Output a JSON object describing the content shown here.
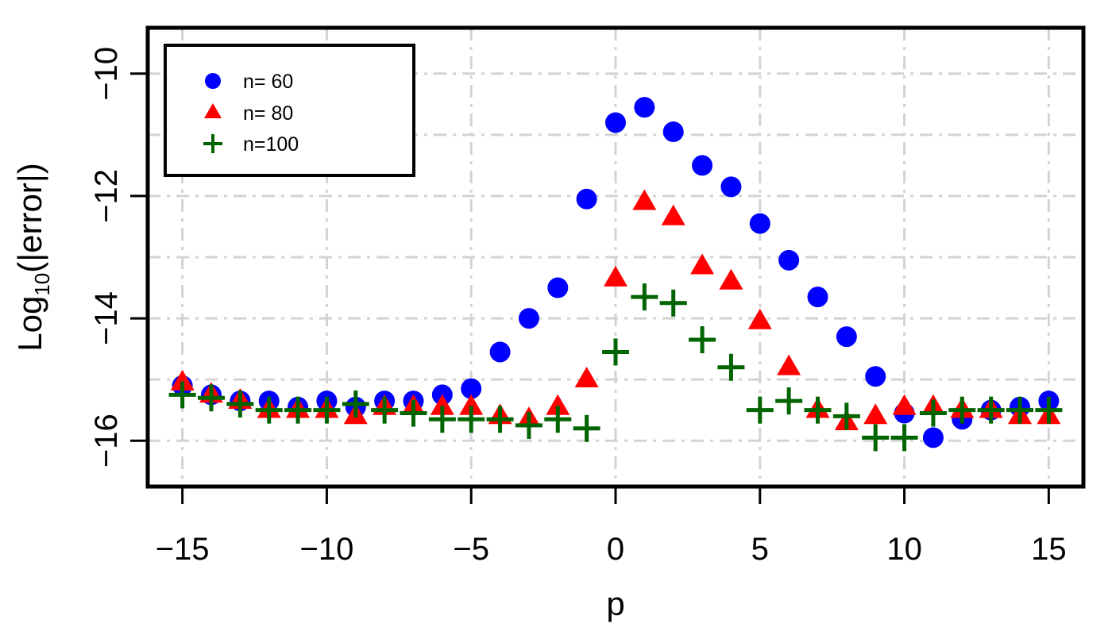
{
  "chart_data": {
    "type": "scatter",
    "title": "",
    "xlabel": "p",
    "ylabel": {
      "prefix": "Log",
      "subscript": "10",
      "suffix": "(|error|)"
    },
    "xlim": [
      -16.2,
      16.2
    ],
    "ylim": [
      -16.75,
      -9.25
    ],
    "xticks": [
      -15,
      -10,
      -5,
      0,
      5,
      10,
      15
    ],
    "xtick_labels": [
      "−15",
      "−10",
      "−5",
      "0",
      "5",
      "10",
      "15"
    ],
    "yticks": [
      -10,
      -12,
      -14,
      -16
    ],
    "ytick_labels": [
      "−10",
      "−12",
      "−14",
      "−16"
    ],
    "grid": true,
    "legend_position": "top-left",
    "colors": {
      "n60": "#0000ff",
      "n80": "#ff0000",
      "n100": "#006400",
      "grid": "#d3d3d3"
    },
    "x": [
      -15,
      -14,
      -13,
      -12,
      -11,
      -10,
      -9,
      -8,
      -7,
      -6,
      -5,
      -4,
      -3,
      -2,
      -1,
      0,
      1,
      2,
      3,
      4,
      5,
      6,
      7,
      8,
      9,
      10,
      11,
      12,
      13,
      14,
      15
    ],
    "series": [
      {
        "name": "n= 60",
        "marker": "circle",
        "color": "#0000ff",
        "values": [
          -15.1,
          -15.25,
          -15.35,
          -15.35,
          -15.45,
          -15.35,
          -15.45,
          -15.35,
          -15.35,
          -15.25,
          -15.15,
          -14.55,
          -14.0,
          -13.5,
          -12.05,
          -10.8,
          -10.55,
          -10.95,
          -11.5,
          -11.85,
          -12.45,
          -13.05,
          -13.65,
          -14.3,
          -14.95,
          -15.55,
          -15.95,
          -15.65,
          -15.5,
          -15.45,
          -15.35
        ]
      },
      {
        "name": "n= 80",
        "marker": "triangle",
        "color": "#ff0000",
        "values": [
          -15.05,
          -15.25,
          -15.35,
          -15.5,
          -15.5,
          -15.5,
          -15.6,
          -15.45,
          -15.45,
          -15.45,
          -15.45,
          -15.6,
          -15.65,
          -15.45,
          -15.0,
          -13.35,
          -12.1,
          -12.35,
          -13.15,
          -13.4,
          -14.05,
          -14.8,
          -15.5,
          -15.7,
          -15.6,
          -15.45,
          -15.45,
          -15.5,
          -15.5,
          -15.6,
          -15.6
        ]
      },
      {
        "name": "n=100",
        "marker": "plus",
        "color": "#006400",
        "values": [
          -15.25,
          -15.3,
          -15.4,
          -15.5,
          -15.5,
          -15.5,
          -15.4,
          -15.5,
          -15.55,
          -15.65,
          -15.65,
          -15.65,
          -15.75,
          -15.65,
          -15.8,
          -14.55,
          -13.65,
          -13.75,
          -14.35,
          -14.8,
          -15.5,
          -15.35,
          -15.5,
          -15.6,
          -15.95,
          -15.95,
          -15.55,
          -15.5,
          -15.5,
          -15.5,
          -15.5
        ]
      }
    ]
  }
}
